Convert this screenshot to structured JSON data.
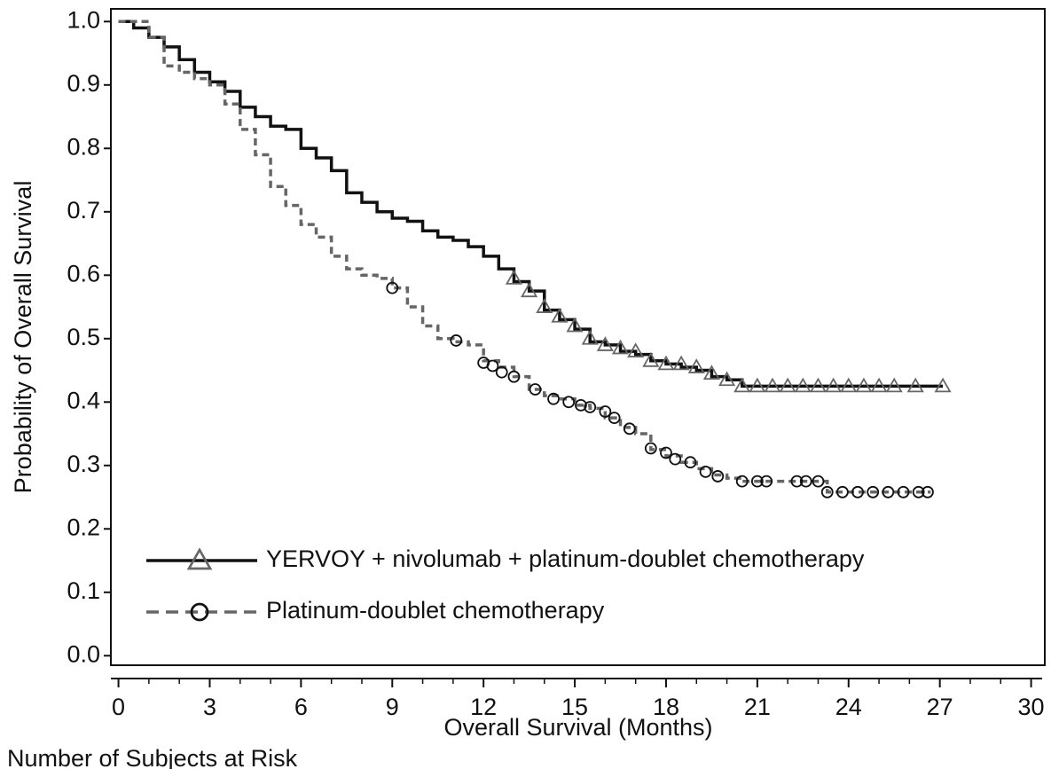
{
  "chart_data": {
    "type": "km",
    "xlabel": "Overall Survival (Months)",
    "ylabel": "Probability of Overall Survival",
    "footer": "Number of Subjects at Risk",
    "xlim": [
      -0.25,
      30.45
    ],
    "ylim": [
      -0.015,
      1.02
    ],
    "xticks": [
      0,
      3,
      6,
      9,
      12,
      15,
      18,
      21,
      24,
      27,
      30
    ],
    "xminorticks": [
      1,
      2,
      4,
      5,
      7,
      8,
      10,
      11,
      13,
      14,
      16,
      17,
      19,
      20,
      22,
      23,
      25,
      26,
      28,
      29
    ],
    "yticks": [
      {
        "value": 0,
        "label": "0.0"
      },
      0.1,
      0.2,
      0.3,
      0.4,
      0.5,
      0.6,
      0.7,
      0.8,
      0.9,
      {
        "value": 1,
        "label": "1.0"
      }
    ],
    "legend": "lower left",
    "series": [
      {
        "name": "YERVOY + nivolumab + platinum-doublet chemotherapy",
        "color": "#111111",
        "marker_color": "#666666",
        "dash": false,
        "marker": "triangle",
        "x": [
          0,
          0.5,
          1,
          1.5,
          2,
          2.5,
          3,
          3.5,
          4,
          4.5,
          5,
          5.5,
          6,
          6.5,
          7,
          7.5,
          8,
          8.5,
          9,
          9.5,
          10,
          10.5,
          11,
          11.5,
          12,
          12.5,
          13,
          13.5,
          14,
          14.5,
          15,
          15.5,
          16,
          16.5,
          17,
          17.5,
          18,
          18.5,
          19,
          19.5,
          20,
          20.5,
          27.1
        ],
        "values": [
          1.0,
          0.99,
          0.975,
          0.96,
          0.94,
          0.92,
          0.905,
          0.89,
          0.865,
          0.85,
          0.835,
          0.83,
          0.8,
          0.785,
          0.765,
          0.73,
          0.715,
          0.7,
          0.69,
          0.685,
          0.67,
          0.66,
          0.655,
          0.645,
          0.63,
          0.61,
          0.59,
          0.575,
          0.545,
          0.53,
          0.515,
          0.495,
          0.49,
          0.48,
          0.475,
          0.465,
          0.46,
          0.455,
          0.45,
          0.44,
          0.435,
          0.425,
          0.425
        ],
        "censored_x": [
          13,
          13.5,
          14,
          14.5,
          15,
          15.5,
          16,
          16.5,
          17,
          17.5,
          18,
          18.5,
          19,
          19.5,
          20,
          20.5,
          21,
          21.5,
          22,
          22.5,
          23,
          23.5,
          24,
          24.5,
          25,
          25.5,
          26.2,
          27.1
        ],
        "censored_values": [
          0.595,
          0.575,
          0.55,
          0.535,
          0.52,
          0.5,
          0.49,
          0.485,
          0.48,
          0.465,
          0.46,
          0.46,
          0.455,
          0.445,
          0.435,
          0.425,
          0.425,
          0.425,
          0.425,
          0.425,
          0.425,
          0.425,
          0.425,
          0.425,
          0.425,
          0.425,
          0.425,
          0.425
        ]
      },
      {
        "name": "Platinum-doublet chemotherapy",
        "color": "#666666",
        "marker_color": "#111111",
        "dash": true,
        "marker": "circle",
        "x": [
          0,
          1,
          1.5,
          2,
          2.5,
          3,
          3.5,
          4,
          4.5,
          5,
          5.5,
          6,
          6.5,
          7,
          7.5,
          8,
          8.5,
          9,
          9.5,
          10,
          10.5,
          11,
          11.5,
          12,
          12.5,
          13,
          13.5,
          14,
          14.5,
          15,
          15.5,
          16,
          16.5,
          17,
          17.5,
          18,
          18.5,
          19,
          19.5,
          20,
          20.5,
          23.3,
          26.7
        ],
        "values": [
          1.0,
          0.975,
          0.93,
          0.92,
          0.91,
          0.9,
          0.87,
          0.83,
          0.79,
          0.74,
          0.71,
          0.68,
          0.66,
          0.63,
          0.61,
          0.6,
          0.595,
          0.58,
          0.55,
          0.52,
          0.5,
          0.495,
          0.49,
          0.465,
          0.455,
          0.44,
          0.42,
          0.41,
          0.405,
          0.395,
          0.39,
          0.375,
          0.36,
          0.35,
          0.325,
          0.315,
          0.305,
          0.295,
          0.285,
          0.28,
          0.275,
          0.258,
          0.258
        ],
        "censored_x": [
          9,
          11.1,
          12,
          12.3,
          12.6,
          13,
          13.7,
          14.3,
          14.8,
          15.2,
          15.5,
          16,
          16.3,
          16.8,
          17.5,
          18,
          18.3,
          18.8,
          19.3,
          19.7,
          20.5,
          21,
          21.3,
          22.3,
          22.6,
          23,
          23.3,
          23.8,
          24.3,
          24.8,
          25.3,
          25.8,
          26.3,
          26.6
        ],
        "censored_values": [
          0.58,
          0.497,
          0.462,
          0.457,
          0.447,
          0.44,
          0.42,
          0.405,
          0.4,
          0.395,
          0.392,
          0.385,
          0.375,
          0.358,
          0.327,
          0.32,
          0.31,
          0.305,
          0.29,
          0.283,
          0.275,
          0.275,
          0.275,
          0.275,
          0.275,
          0.275,
          0.258,
          0.258,
          0.258,
          0.258,
          0.258,
          0.258,
          0.258,
          0.258
        ]
      }
    ]
  }
}
